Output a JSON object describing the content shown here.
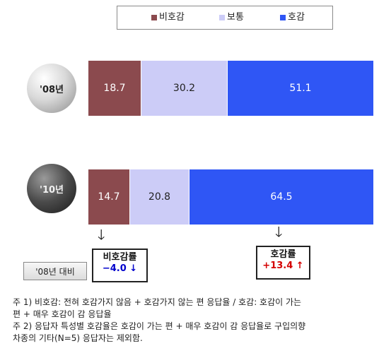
{
  "chart_data": {
    "type": "bar",
    "orientation": "horizontal",
    "stacked": "100%",
    "categories": [
      "'08년",
      "'10년"
    ],
    "series": [
      {
        "name": "비호감",
        "values": [
          18.7,
          14.7
        ],
        "color": "#8b4a4e"
      },
      {
        "name": "보통",
        "values": [
          30.2,
          20.8
        ],
        "color": "#ccccf7"
      },
      {
        "name": "호감",
        "values": [
          51.1,
          64.5
        ],
        "color": "#2f56f5"
      }
    ],
    "legend_position": "top",
    "grid": false
  },
  "compare": {
    "label": "'08년 대비",
    "unfavorable_label": "비호감률",
    "unfavorable_change": "−4.0 ↓",
    "unfavorable_change_color": "#0000cc",
    "favorable_label": "호감률",
    "favorable_change": "+13.4 ↑",
    "favorable_change_color": "#d40000"
  },
  "notes": [
    "주 1) 비호감: 전혀 호감가지 않음 + 호감가지 않는 편 응답율 / 호감: 호감이 가는",
    "편 + 매우 호감이 감 응답율",
    "주 2) 응답자 특성별 호감율은 호감이 가는 편 + 매우 호감이 감 응답율로 구입의향",
    "차종의 기타(N=5) 응답자는 제외함."
  ]
}
